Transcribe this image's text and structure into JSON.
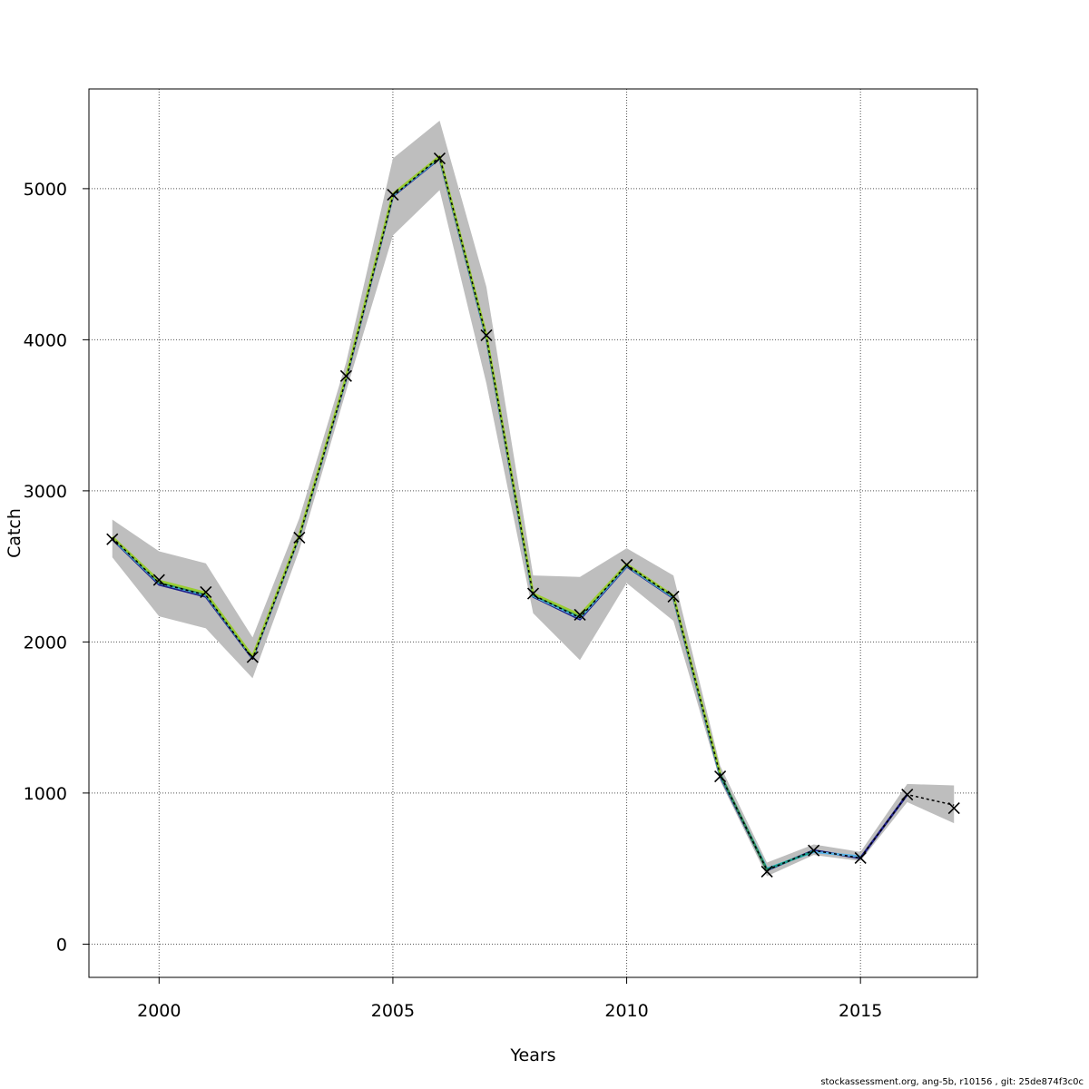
{
  "chart_data": {
    "type": "line",
    "xlabel": "Years",
    "ylabel": "Catch",
    "xlim": [
      1998.5,
      2017.5
    ],
    "ylim": [
      -220,
      5660
    ],
    "grid": true,
    "xticks": [
      2000,
      2005,
      2010,
      2015
    ],
    "yticks": [
      0,
      1000,
      2000,
      3000,
      4000,
      5000
    ],
    "observed": {
      "marker": "x",
      "x": [
        1999,
        2000,
        2001,
        2002,
        2003,
        2004,
        2005,
        2006,
        2007,
        2008,
        2009,
        2010,
        2011,
        2012,
        2013,
        2014,
        2015,
        2016,
        2017
      ],
      "y": [
        2680,
        2410,
        2330,
        1900,
        2690,
        3760,
        4960,
        5200,
        4030,
        2320,
        2180,
        2510,
        2300,
        1110,
        480,
        620,
        570,
        990,
        900
      ]
    },
    "estimate": {
      "x": [
        1999,
        2000,
        2001,
        2002,
        2003,
        2004,
        2005,
        2006,
        2007,
        2008,
        2009,
        2010,
        2011,
        2012,
        2013,
        2014,
        2015,
        2016,
        2017
      ],
      "y": [
        2690,
        2390,
        2310,
        1890,
        2700,
        3740,
        4950,
        5210,
        4020,
        2310,
        2160,
        2510,
        2300,
        1120,
        490,
        620,
        570,
        990,
        920
      ],
      "lower": [
        2560,
        2170,
        2090,
        1760,
        2610,
        3660,
        4690,
        4990,
        3710,
        2190,
        1880,
        2390,
        2140,
        1080,
        450,
        590,
        550,
        940,
        800
      ],
      "upper": [
        2810,
        2600,
        2520,
        2030,
        2820,
        3850,
        5200,
        5450,
        4350,
        2440,
        2430,
        2620,
        2440,
        1180,
        540,
        660,
        610,
        1060,
        1050
      ]
    },
    "retro_series": [
      {
        "color": "#1e1e8a",
        "x": [
          1999,
          2000,
          2001,
          2002,
          2003,
          2004,
          2005,
          2006,
          2007,
          2008,
          2009,
          2010,
          2011,
          2012,
          2013,
          2014,
          2015,
          2016
        ],
        "y": [
          2680,
          2380,
          2300,
          1890,
          2700,
          3740,
          4950,
          5200,
          4010,
          2300,
          2150,
          2500,
          2290,
          1110,
          490,
          620,
          570,
          990
        ]
      },
      {
        "color": "#5ab4e6",
        "x": [
          1999,
          2000,
          2001,
          2002,
          2003,
          2004,
          2005,
          2006,
          2007,
          2008,
          2009,
          2010,
          2011,
          2012,
          2013,
          2014,
          2015
        ],
        "y": [
          2685,
          2390,
          2310,
          1895,
          2700,
          3745,
          4955,
          5205,
          4015,
          2305,
          2160,
          2505,
          2295,
          1115,
          500,
          610,
          580
        ]
      },
      {
        "color": "#1a9e8a",
        "x": [
          1999,
          2000,
          2001,
          2002,
          2003,
          2004,
          2005,
          2006,
          2007,
          2008,
          2009,
          2010,
          2011,
          2012,
          2013,
          2014
        ],
        "y": [
          2690,
          2395,
          2315,
          1900,
          2705,
          3750,
          4960,
          5210,
          4020,
          2310,
          2170,
          2510,
          2300,
          1120,
          495,
          615
        ]
      },
      {
        "color": "#2e8b57",
        "x": [
          1999,
          2000,
          2001,
          2002,
          2003,
          2004,
          2005,
          2006,
          2007,
          2008,
          2009,
          2010,
          2011,
          2012,
          2013
        ],
        "y": [
          2692,
          2400,
          2320,
          1900,
          2705,
          3752,
          4962,
          5212,
          4025,
          2315,
          2175,
          2512,
          2302,
          1125,
          488
        ]
      },
      {
        "color": "#9acd32",
        "x": [
          1999,
          2000,
          2001,
          2002,
          2003,
          2004,
          2005,
          2006,
          2007,
          2008,
          2009,
          2010,
          2011,
          2012
        ],
        "y": [
          2695,
          2405,
          2325,
          1905,
          2710,
          3755,
          4965,
          5215,
          4030,
          2320,
          2180,
          2515,
          2305,
          1130
        ]
      }
    ]
  },
  "footer_text": "stockassessment.org, ang-5b, r10156 , git: 25de874f3c0c"
}
